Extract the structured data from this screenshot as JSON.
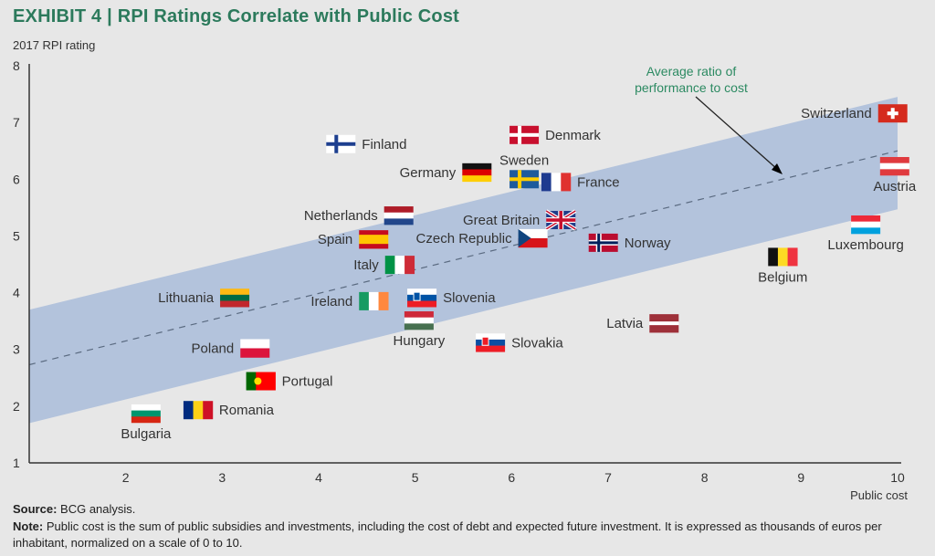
{
  "title_prefix": "EXHIBIT 4",
  "title_text": "RPI Ratings Correlate with Public Cost",
  "footer": {
    "source_label": "Source:",
    "source_text": "BCG analysis.",
    "note_label": "Note:",
    "note_text": "Public cost is the sum of public subsidies and investments, including the cost of debt and expected future investment. It is expressed as thousands of euros per inhabitant, normalized on a scale of 0 to 10."
  },
  "chart_data": {
    "type": "scatter",
    "title": "EXHIBIT 4 | RPI Ratings Correlate with Public Cost",
    "xlabel": "Public cost",
    "ylabel": "2017 RPI rating",
    "xlim": [
      1,
      10
    ],
    "ylim": [
      1,
      8
    ],
    "xticks": [
      "2",
      "3",
      "4",
      "5",
      "6",
      "7",
      "8",
      "9",
      "10"
    ],
    "yticks": [
      "1",
      "2",
      "3",
      "4",
      "5",
      "6",
      "7",
      "8"
    ],
    "grid": false,
    "annotation": "Average ratio of performance to cost",
    "annotation_line1": "Average ratio of",
    "annotation_line2": "performance to cost",
    "trend_line": {
      "x": [
        1,
        10
      ],
      "y": [
        2.73,
        6.5
      ]
    },
    "band": {
      "x": [
        1,
        10
      ],
      "upper": [
        3.7,
        7.45
      ],
      "lower": [
        1.7,
        5.47
      ]
    },
    "colors": {
      "band": "#b3c3dc",
      "title": "#2c7a5c",
      "trend": "#5a6a80"
    },
    "points": [
      {
        "country": "Finland",
        "x": 4.23,
        "y": 6.62,
        "label_side": "right"
      },
      {
        "country": "Denmark",
        "x": 6.13,
        "y": 6.78,
        "label_side": "right"
      },
      {
        "country": "Germany",
        "x": 5.64,
        "y": 6.12,
        "label_side": "left"
      },
      {
        "country": "Sweden",
        "x": 6.13,
        "y": 6.0,
        "label_side": "above"
      },
      {
        "country": "France",
        "x": 6.46,
        "y": 5.95,
        "label_side": "right"
      },
      {
        "country": "Switzerland",
        "x": 9.95,
        "y": 7.16,
        "label_side": "left"
      },
      {
        "country": "Austria",
        "x": 9.97,
        "y": 6.23,
        "label_side": "below"
      },
      {
        "country": "Netherlands",
        "x": 4.83,
        "y": 5.36,
        "label_side": "left"
      },
      {
        "country": "Spain",
        "x": 4.57,
        "y": 4.94,
        "label_side": "left"
      },
      {
        "country": "Great Britain",
        "x": 6.51,
        "y": 5.28,
        "label_side": "left"
      },
      {
        "country": "Czech Republic",
        "x": 6.22,
        "y": 4.96,
        "label_side": "left"
      },
      {
        "country": "Norway",
        "x": 6.95,
        "y": 4.88,
        "label_side": "right"
      },
      {
        "country": "Luxembourg",
        "x": 9.67,
        "y": 5.2,
        "label_side": "below"
      },
      {
        "country": "Belgium",
        "x": 8.81,
        "y": 4.63,
        "label_side": "below"
      },
      {
        "country": "Italy",
        "x": 4.84,
        "y": 4.49,
        "label_side": "left"
      },
      {
        "country": "Lithuania",
        "x": 3.13,
        "y": 3.91,
        "label_side": "left"
      },
      {
        "country": "Ireland",
        "x": 4.57,
        "y": 3.85,
        "label_side": "left"
      },
      {
        "country": "Slovenia",
        "x": 5.07,
        "y": 3.91,
        "label_side": "right"
      },
      {
        "country": "Hungary",
        "x": 5.04,
        "y": 3.51,
        "label_side": "below"
      },
      {
        "country": "Latvia",
        "x": 7.58,
        "y": 3.46,
        "label_side": "left"
      },
      {
        "country": "Slovakia",
        "x": 5.78,
        "y": 3.12,
        "label_side": "right"
      },
      {
        "country": "Poland",
        "x": 3.34,
        "y": 3.02,
        "label_side": "left"
      },
      {
        "country": "Portugal",
        "x": 3.4,
        "y": 2.44,
        "label_side": "right"
      },
      {
        "country": "Romania",
        "x": 2.75,
        "y": 1.93,
        "label_side": "right"
      },
      {
        "country": "Bulgaria",
        "x": 2.21,
        "y": 1.87,
        "label_side": "below"
      }
    ]
  }
}
